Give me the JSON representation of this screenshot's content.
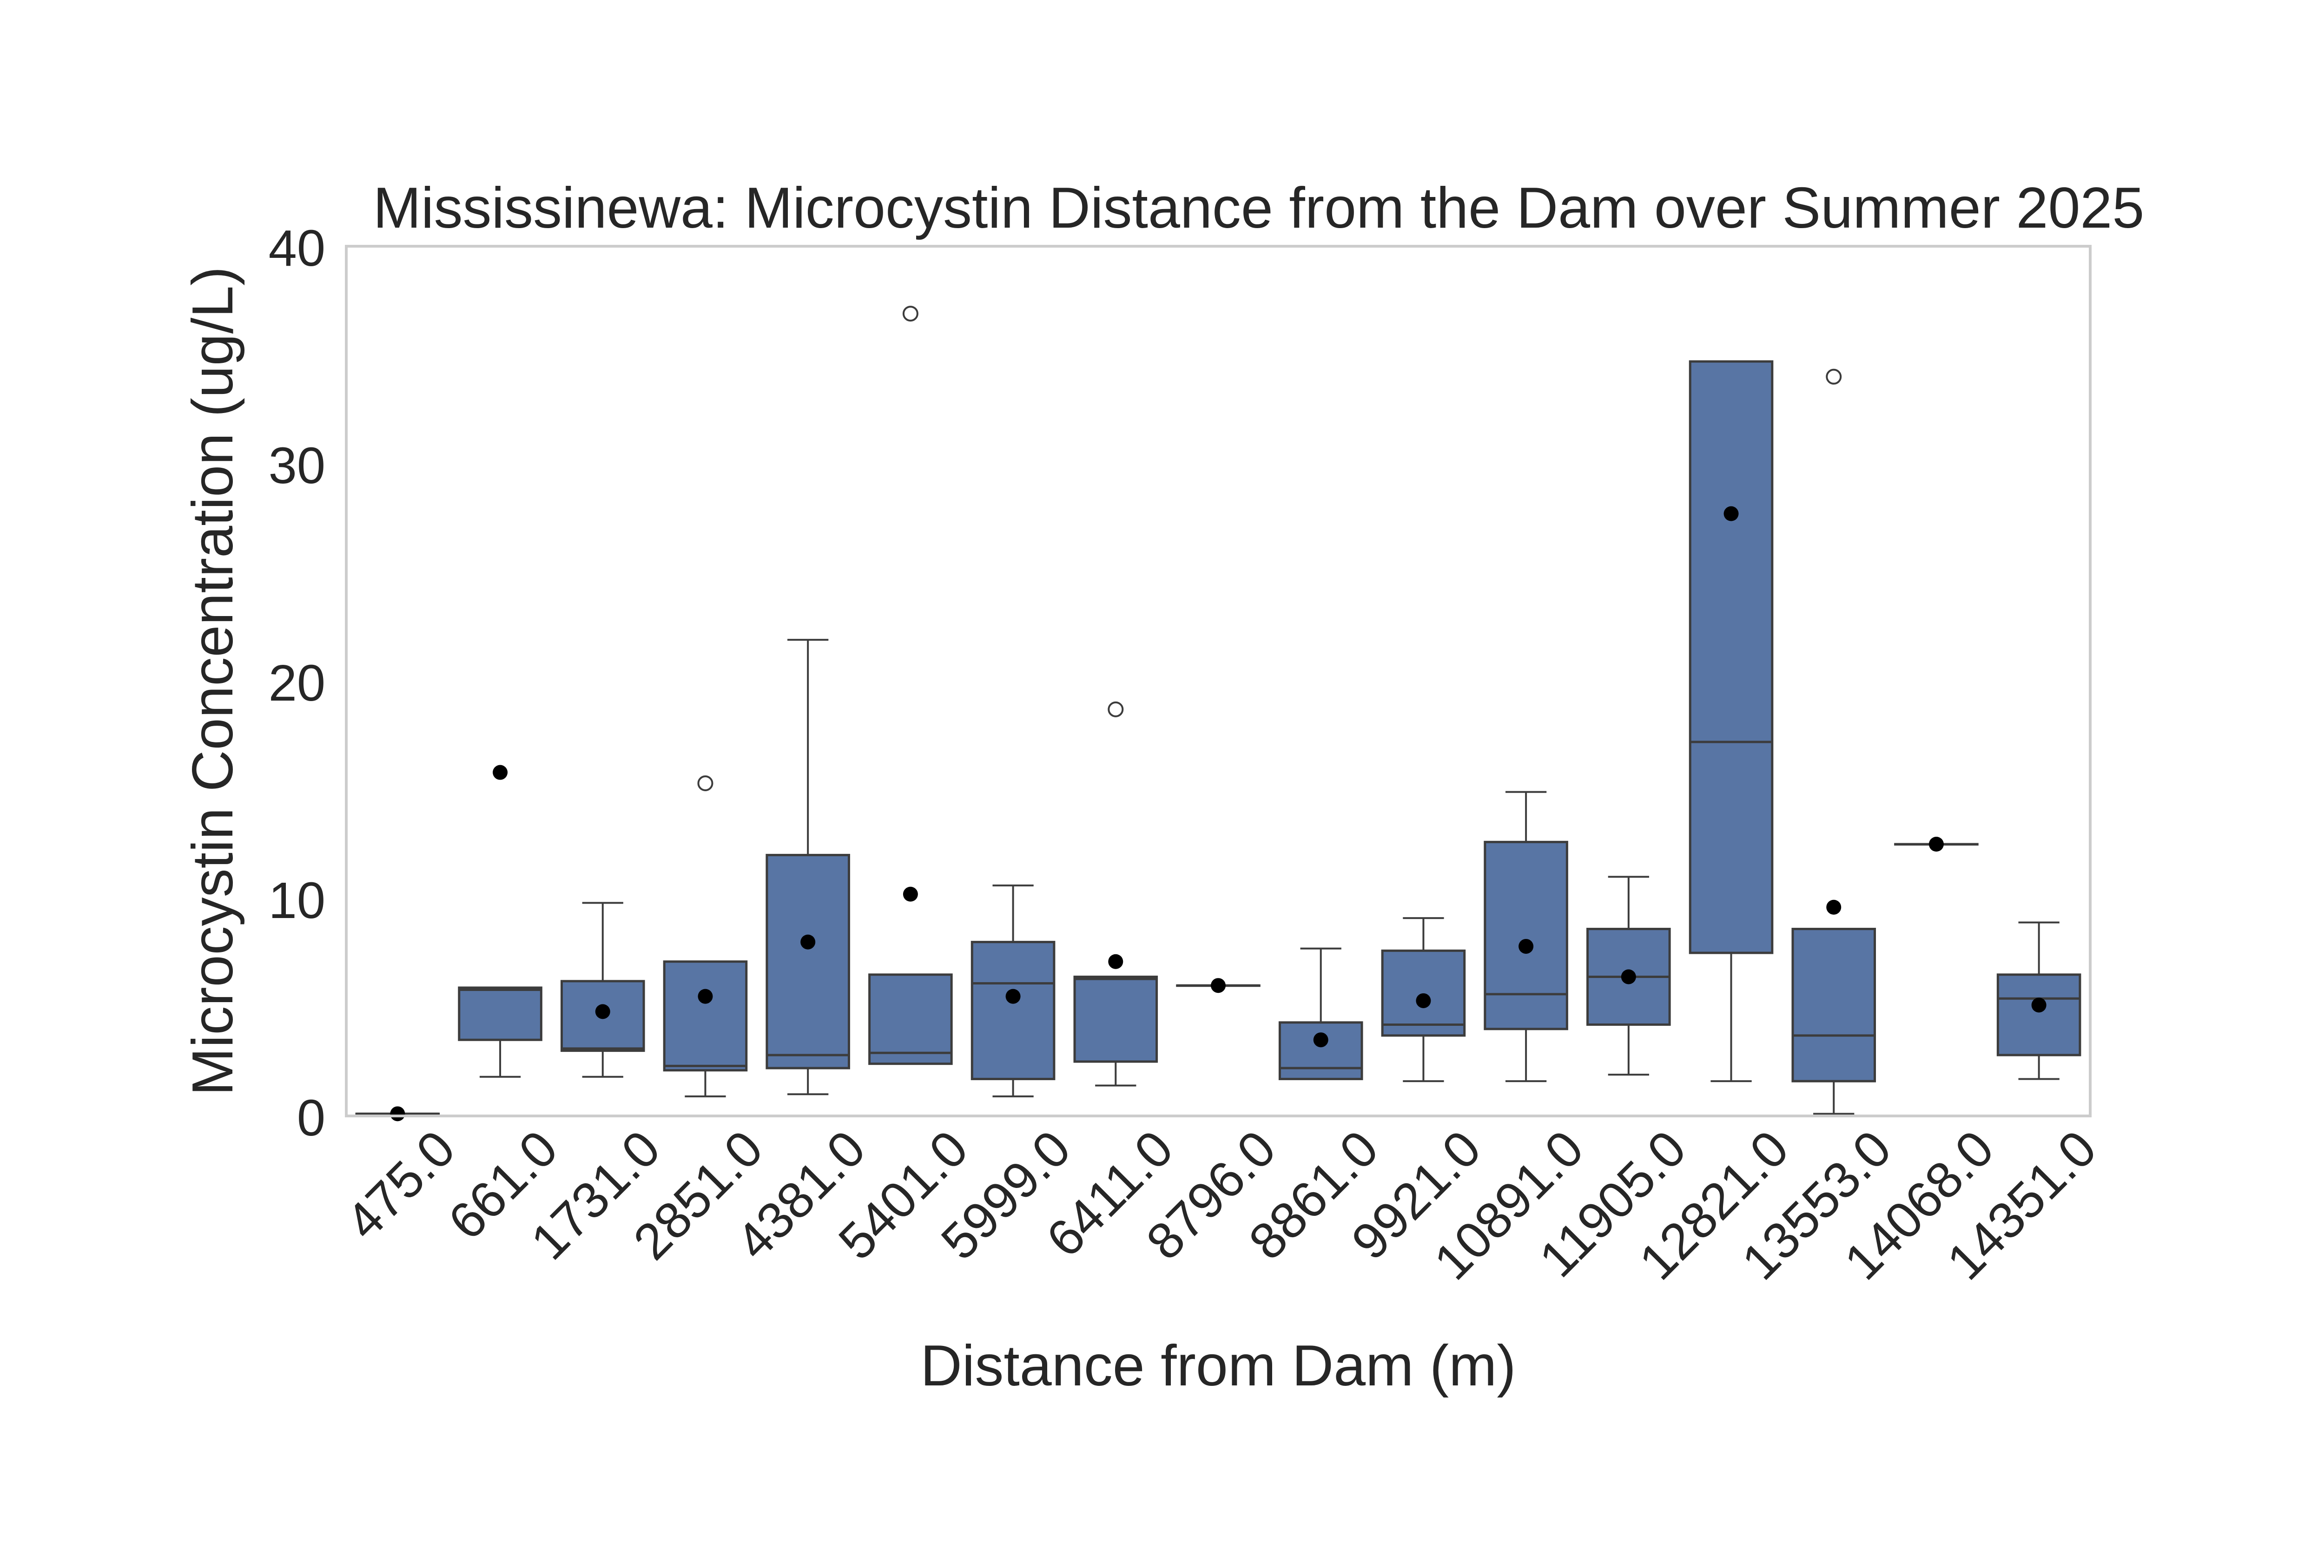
{
  "chart_data": {
    "type": "box",
    "title": "Mississinewa: Microcystin Distance from the Dam over Summer 2025",
    "xlabel": "Distance from Dam (m)",
    "ylabel": "Microcystin Concentration (ug/L)",
    "ylim": [
      0,
      40
    ],
    "yticks": [
      0,
      10,
      20,
      30,
      40
    ],
    "grid": false,
    "box_color": "#5875a4",
    "edge_color": "#3c3c3c",
    "mean_marker_color": "#000000",
    "boxes": [
      {
        "category": "475.0",
        "whisker_low": 0.1,
        "q1": 0.1,
        "median": 0.1,
        "q3": 0.1,
        "whisker_high": 0.1,
        "mean": 0.1,
        "outliers": []
      },
      {
        "category": "661.0",
        "whisker_low": 1.8,
        "q1": 3.5,
        "median": 5.8,
        "q3": 5.9,
        "whisker_high": 5.9,
        "mean": 15.8,
        "outliers": []
      },
      {
        "category": "1731.0",
        "whisker_low": 1.8,
        "q1": 3.0,
        "median": 3.1,
        "q3": 6.2,
        "whisker_high": 9.8,
        "mean": 4.8,
        "outliers": []
      },
      {
        "category": "2851.0",
        "whisker_low": 0.9,
        "q1": 2.1,
        "median": 2.3,
        "q3": 7.1,
        "whisker_high": 7.1,
        "mean": 5.5,
        "outliers": [
          15.3
        ]
      },
      {
        "category": "4381.0",
        "whisker_low": 1.0,
        "q1": 2.2,
        "median": 2.8,
        "q3": 12.0,
        "whisker_high": 21.9,
        "mean": 8.0,
        "outliers": []
      },
      {
        "category": "5401.0",
        "whisker_low": 2.4,
        "q1": 2.4,
        "median": 2.9,
        "q3": 6.5,
        "whisker_high": 6.5,
        "mean": 10.2,
        "outliers": [
          36.9
        ]
      },
      {
        "category": "5999.0",
        "whisker_low": 0.9,
        "q1": 1.7,
        "median": 6.1,
        "q3": 8.0,
        "whisker_high": 10.6,
        "mean": 5.5,
        "outliers": []
      },
      {
        "category": "6411.0",
        "whisker_low": 1.4,
        "q1": 2.5,
        "median": 6.3,
        "q3": 6.4,
        "whisker_high": 6.4,
        "mean": 7.1,
        "outliers": [
          18.7
        ]
      },
      {
        "category": "8796.0",
        "whisker_low": 6.0,
        "q1": 6.0,
        "median": 6.0,
        "q3": 6.0,
        "whisker_high": 6.0,
        "mean": 6.0,
        "outliers": []
      },
      {
        "category": "8861.0",
        "whisker_low": 1.7,
        "q1": 1.7,
        "median": 2.2,
        "q3": 4.3,
        "whisker_high": 7.7,
        "mean": 3.5,
        "outliers": []
      },
      {
        "category": "9921.0",
        "whisker_low": 1.6,
        "q1": 3.7,
        "median": 4.2,
        "q3": 7.6,
        "whisker_high": 9.1,
        "mean": 5.3,
        "outliers": []
      },
      {
        "category": "10891.0",
        "whisker_low": 1.6,
        "q1": 4.0,
        "median": 5.6,
        "q3": 12.6,
        "whisker_high": 14.9,
        "mean": 7.8,
        "outliers": []
      },
      {
        "category": "11905.0",
        "whisker_low": 1.9,
        "q1": 4.2,
        "median": 6.4,
        "q3": 8.6,
        "whisker_high": 11.0,
        "mean": 6.4,
        "outliers": []
      },
      {
        "category": "12821.0",
        "whisker_low": 1.6,
        "q1": 7.5,
        "median": 17.2,
        "q3": 34.7,
        "whisker_high": 34.7,
        "mean": 27.7,
        "outliers": []
      },
      {
        "category": "13553.0",
        "whisker_low": 0.1,
        "q1": 1.6,
        "median": 3.7,
        "q3": 8.6,
        "whisker_high": 8.6,
        "mean": 9.6,
        "outliers": [
          34.0
        ]
      },
      {
        "category": "14068.0",
        "whisker_low": 12.5,
        "q1": 12.5,
        "median": 12.5,
        "q3": 12.5,
        "whisker_high": 12.5,
        "mean": 12.5,
        "outliers": []
      },
      {
        "category": "14351.0",
        "whisker_low": 1.7,
        "q1": 2.8,
        "median": 5.4,
        "q3": 6.5,
        "whisker_high": 8.9,
        "mean": 5.1,
        "outliers": []
      }
    ]
  }
}
